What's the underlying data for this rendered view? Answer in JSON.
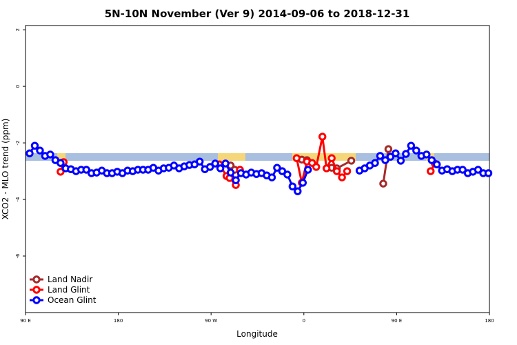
{
  "chart_data": {
    "type": "line",
    "title": "5N-10N November (Ver 9)   2014-09-06 to 2018-12-31",
    "x_label": "Longitude",
    "y_label": "XCO2 - MLO trend (ppm)",
    "xlim": [
      90,
      540
    ],
    "ylim": [
      -8,
      2.15
    ],
    "xticks": [
      {
        "value": 90,
        "label": "90 E"
      },
      {
        "value": 180,
        "label": "180"
      },
      {
        "value": 270,
        "label": "90 W"
      },
      {
        "value": 360,
        "label": "0"
      },
      {
        "value": 450,
        "label": "90 E"
      },
      {
        "value": 540,
        "label": "180"
      }
    ],
    "yticks": [
      -6,
      -4,
      -2,
      0,
      2
    ],
    "legend": "bottom-left",
    "series": [
      {
        "name": "Land Nadir",
        "color": "#a52a2a",
        "x": [
          289,
          293,
          320,
          358,
          363,
          375,
          387,
          392,
          406,
          420,
          437,
          442
        ],
        "values": [
          -2.8,
          -2.95,
          null,
          -2.59,
          -2.61,
          null,
          -2.88,
          -2.9,
          -2.63,
          null,
          -3.44,
          -2.22
        ]
      },
      {
        "name": "Land Glint",
        "color": "#ff0000",
        "x": [
          124,
          127,
          200,
          278,
          285,
          288,
          294,
          298,
          325,
          353,
          358,
          363,
          368,
          372,
          378,
          382,
          387,
          392,
          397,
          402,
          440,
          483,
          487
        ],
        "values": [
          -3.02,
          -2.68,
          null,
          -2.76,
          -3.17,
          -3.24,
          -3.49,
          -2.95,
          null,
          -2.54,
          -3.41,
          -2.66,
          -2.71,
          -2.85,
          -1.78,
          -2.9,
          -2.54,
          -3.0,
          -3.22,
          -3.0,
          null,
          -3.0,
          -2.73
        ]
      },
      {
        "name": "Ocean Glint",
        "color": "#0000ff",
        "x": [
          94,
          99,
          104,
          109,
          114,
          119,
          124,
          129,
          134,
          139,
          144,
          149,
          154,
          159,
          164,
          169,
          174,
          179,
          184,
          189,
          194,
          199,
          204,
          209,
          214,
          219,
          224,
          229,
          234,
          239,
          244,
          249,
          254,
          259,
          264,
          269,
          274,
          279,
          284,
          289,
          294,
          299,
          304,
          309,
          314,
          319,
          324,
          329,
          334,
          339,
          344,
          349,
          354,
          359,
          364,
          389,
          414,
          419,
          424,
          429,
          434,
          439,
          444,
          449,
          454,
          459,
          464,
          469,
          474,
          479,
          484,
          489,
          494,
          499,
          504,
          509,
          514,
          519,
          524,
          529,
          534,
          539
        ],
        "values": [
          -2.37,
          -2.1,
          -2.27,
          -2.46,
          -2.41,
          -2.61,
          -2.71,
          -2.9,
          -2.93,
          -3.0,
          -2.95,
          -2.95,
          -3.07,
          -3.05,
          -2.98,
          -3.07,
          -3.07,
          -3.02,
          -3.07,
          -2.98,
          -3.0,
          -2.95,
          -2.95,
          -2.95,
          -2.88,
          -2.98,
          -2.9,
          -2.88,
          -2.8,
          -2.9,
          -2.83,
          -2.78,
          -2.76,
          -2.66,
          -2.93,
          -2.85,
          -2.73,
          -2.9,
          -2.73,
          -3.05,
          -3.32,
          -3.07,
          -3.12,
          -3.05,
          -3.1,
          -3.07,
          -3.15,
          -3.22,
          -2.88,
          -3.0,
          -3.12,
          -3.54,
          -3.71,
          -3.41,
          -2.95,
          null,
          -2.98,
          -2.9,
          -2.8,
          -2.71,
          -2.46,
          -2.61,
          -2.49,
          -2.37,
          -2.63,
          -2.39,
          -2.1,
          -2.27,
          -2.46,
          -2.41,
          -2.61,
          -2.76,
          -2.98,
          -2.93,
          -3.0,
          -2.95,
          -2.95,
          -3.07,
          -3.02,
          -2.95,
          -3.07,
          -3.07
        ]
      }
    ]
  }
}
